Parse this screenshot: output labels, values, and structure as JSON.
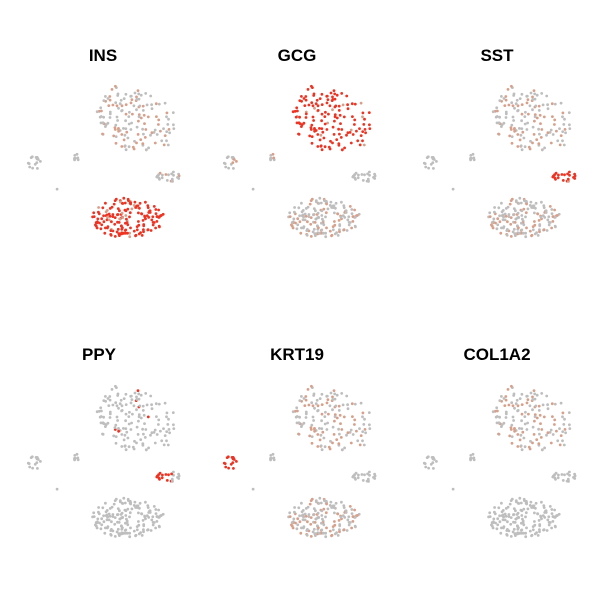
{
  "chart_data": [
    {
      "type": "scatter",
      "title": "INS",
      "xlabel": "",
      "ylabel": "",
      "grid": false,
      "legend": "none",
      "hot_cluster": "beta",
      "partial_clusters": [
        "alpha",
        "delta"
      ],
      "hot_fraction": 0.9
    },
    {
      "type": "scatter",
      "title": "GCG",
      "xlabel": "",
      "ylabel": "",
      "grid": false,
      "legend": "none",
      "hot_cluster": "alpha",
      "partial_clusters": [
        "beta",
        "ductal",
        "small2"
      ],
      "hot_fraction": 0.9
    },
    {
      "type": "scatter",
      "title": "SST",
      "xlabel": "",
      "ylabel": "",
      "grid": false,
      "legend": "none",
      "hot_cluster": "delta",
      "partial_clusters": [
        "alpha",
        "beta"
      ],
      "hot_fraction": 0.9
    },
    {
      "type": "scatter",
      "title": "PPY",
      "xlabel": "",
      "ylabel": "",
      "grid": false,
      "legend": "none",
      "hot_cluster": "delta_sub",
      "partial_clusters": [],
      "hot_fraction": 0.5
    },
    {
      "type": "scatter",
      "title": "KRT19",
      "xlabel": "",
      "ylabel": "",
      "grid": false,
      "legend": "none",
      "hot_cluster": "ductal",
      "partial_clusters": [
        "beta",
        "alpha"
      ],
      "hot_fraction": 0.9
    },
    {
      "type": "scatter",
      "title": "COL1A2",
      "xlabel": "",
      "ylabel": "",
      "grid": false,
      "legend": "none",
      "hot_cluster": "stellate",
      "partial_clusters": [
        "alpha"
      ],
      "hot_fraction": 0.9
    }
  ],
  "colors": {
    "low": "#bebebe",
    "mid": "#d8a08a",
    "high": "#ee3322"
  }
}
